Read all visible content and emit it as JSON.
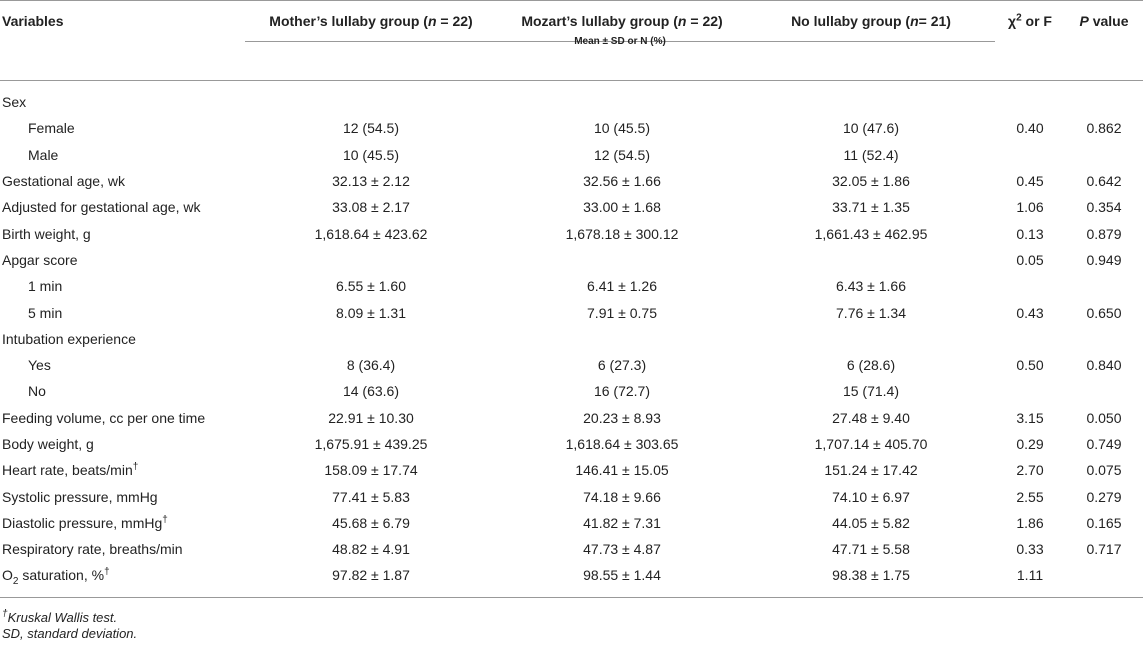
{
  "header": {
    "cells": [
      [
        "Variables"
      ],
      [
        "Mother’s lullaby group (",
        "n",
        " = 22)"
      ],
      [
        "Mozart’s lullaby group (",
        "n",
        " = 22)"
      ],
      [
        "No lullaby group (",
        "n",
        "= 21)"
      ],
      [
        "χ",
        "2",
        " or F"
      ],
      [
        "P",
        " value"
      ]
    ],
    "subheader": "Mean ± SD or N (%)"
  },
  "table": {
    "rows": [
      {
        "label": [
          "Sex"
        ]
      },
      {
        "label": [
          "Female"
        ],
        "cells": [
          "12 (54.5)",
          "10 (45.5)",
          "10 (47.6)",
          "0.40",
          "0.862"
        ]
      },
      {
        "label": [
          "Male"
        ],
        "cells": [
          "10 (45.5)",
          "12 (54.5)",
          "11 (52.4)",
          null,
          null
        ]
      },
      {
        "label": [
          "Gestational age, wk"
        ],
        "cells": [
          "32.13 ± 2.12",
          "32.56 ± 1.66",
          "32.05 ± 1.86",
          "0.45",
          "0.642"
        ]
      },
      {
        "label": [
          "Adjusted for gestational age, wk"
        ],
        "cells": [
          "33.08 ± 2.17",
          "33.00 ± 1.68",
          "33.71 ± 1.35",
          "1.06",
          "0.354"
        ]
      },
      {
        "label": [
          "Birth weight, g"
        ],
        "cells": [
          "1,618.64 ± 423.62",
          "1,678.18 ± 300.12",
          "1,661.43 ± 462.95",
          "0.13",
          "0.879"
        ]
      },
      {
        "label": [
          "Apgar score"
        ],
        "cells": [
          null,
          null,
          null,
          "0.05",
          "0.949"
        ]
      },
      {
        "label": [
          "1 min"
        ],
        "cells": [
          "6.55 ± 1.60",
          "6.41 ± 1.26",
          "6.43 ± 1.66",
          null,
          null
        ]
      },
      {
        "label": [
          "5 min"
        ],
        "cells": [
          "8.09 ± 1.31",
          "7.91 ± 0.75",
          "7.76 ± 1.34",
          "0.43",
          "0.650"
        ]
      },
      {
        "label": [
          "Intubation experience"
        ]
      },
      {
        "label": [
          "Yes"
        ],
        "cells": [
          "8 (36.4)",
          "6 (27.3)",
          "6 (28.6)",
          "0.50",
          "0.840"
        ]
      },
      {
        "label": [
          "No"
        ],
        "cells": [
          "14 (63.6)",
          "16 (72.7)",
          "15 (71.4)",
          null,
          null
        ]
      },
      {
        "label": [
          "Feeding volume, cc per one time"
        ],
        "cells": [
          "22.91 ± 10.30",
          "20.23 ± 8.93",
          "27.48 ± 9.40",
          "3.15",
          "0.050"
        ]
      },
      {
        "label": [
          "Body weight, g"
        ],
        "cells": [
          "1,675.91 ± 439.25",
          "1,618.64 ± 303.65",
          "1,707.14 ± 405.70",
          "0.29",
          "0.749"
        ]
      },
      {
        "label": [
          "Heart rate, beats/min",
          "†"
        ],
        "cells": [
          "158.09 ± 17.74",
          "146.41 ± 15.05",
          "151.24 ± 17.42",
          "2.70",
          "0.075"
        ]
      },
      {
        "label": [
          "Systolic pressure, mmHg"
        ],
        "cells": [
          "77.41 ± 5.83",
          "74.18 ± 9.66",
          "74.10 ± 6.97",
          "2.55",
          "0.279"
        ]
      },
      {
        "label": [
          "Diastolic pressure, mmHg",
          "†"
        ],
        "cells": [
          "45.68 ± 6.79",
          "41.82 ± 7.31",
          "44.05 ± 5.82",
          "1.86",
          "0.165"
        ]
      },
      {
        "label": [
          "Respiratory rate, breaths/min"
        ],
        "cells": [
          "48.82 ± 4.91",
          "47.73 ± 4.87",
          "47.71 ± 5.58",
          "0.33",
          "0.717"
        ]
      },
      {
        "label": [
          "O",
          "2",
          " saturation, %",
          "†"
        ],
        "cells": [
          "97.82 ± 1.87",
          "98.55 ± 1.44",
          "98.38 ± 1.75",
          "1.11",
          null
        ]
      }
    ]
  },
  "footnotes": [
    [
      "†",
      "Kruskal Wallis test."
    ],
    [
      "SD, standard deviation."
    ]
  ]
}
